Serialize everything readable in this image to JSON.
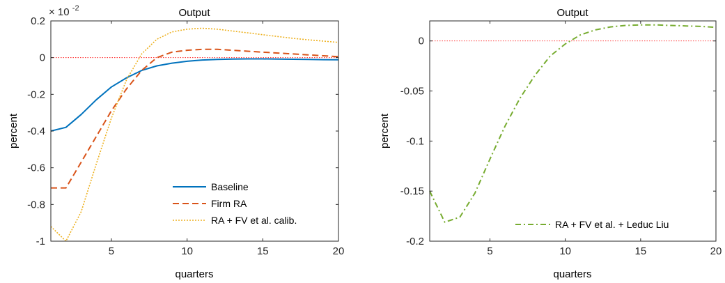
{
  "chart_data": [
    {
      "type": "line",
      "title": "Output",
      "xlabel": "quarters",
      "ylabel": "percent",
      "exponent_base": "× 10",
      "exponent_power": "-2",
      "xlim": [
        1,
        20
      ],
      "ylim": [
        -1,
        0.2
      ],
      "xticks": [
        5,
        10,
        15,
        20
      ],
      "yticks": [
        0.2,
        0,
        -0.2,
        -0.4,
        -0.6,
        -0.8,
        -1
      ],
      "ytick_labels": [
        "0.2",
        "0",
        "-0.2",
        "-0.4",
        "-0.6",
        "-0.8",
        "-1"
      ],
      "xtick_labels": [
        "5",
        "10",
        "15",
        "20"
      ],
      "grid": false,
      "legend_placement": "bottom-right",
      "reference_line": {
        "y": 0,
        "color": "#ff0000",
        "style": "dotted"
      },
      "x": [
        1,
        2,
        3,
        4,
        5,
        6,
        7,
        8,
        9,
        10,
        11,
        12,
        13,
        14,
        15,
        16,
        17,
        18,
        19,
        20
      ],
      "series": [
        {
          "name": "Baseline",
          "color": "#0072bd",
          "style": "solid",
          "values": [
            -0.4,
            -0.38,
            -0.31,
            -0.23,
            -0.16,
            -0.11,
            -0.07,
            -0.045,
            -0.03,
            -0.02,
            -0.013,
            -0.01,
            -0.008,
            -0.007,
            -0.007,
            -0.008,
            -0.009,
            -0.01,
            -0.011,
            -0.012
          ]
        },
        {
          "name": "Firm RA",
          "color": "#d95319",
          "style": "dashed",
          "values": [
            -0.71,
            -0.71,
            -0.57,
            -0.43,
            -0.29,
            -0.17,
            -0.07,
            0.0,
            0.03,
            0.04,
            0.045,
            0.045,
            0.04,
            0.035,
            0.03,
            0.025,
            0.02,
            0.015,
            0.01,
            0.005
          ]
        },
        {
          "name": "RA + FV et al. calib.",
          "color": "#edb120",
          "style": "dotted",
          "values": [
            -0.92,
            -1.0,
            -0.84,
            -0.58,
            -0.33,
            -0.12,
            0.02,
            0.1,
            0.14,
            0.155,
            0.16,
            0.155,
            0.145,
            0.135,
            0.125,
            0.115,
            0.105,
            0.097,
            0.09,
            0.083
          ]
        }
      ]
    },
    {
      "type": "line",
      "title": "Output",
      "xlabel": "quarters",
      "ylabel": "percent",
      "xlim": [
        1,
        20
      ],
      "ylim": [
        -0.2,
        0.02
      ],
      "xticks": [
        5,
        10,
        15,
        20
      ],
      "yticks": [
        0,
        -0.05,
        -0.1,
        -0.15,
        -0.2
      ],
      "ytick_labels": [
        "0",
        "-0.05",
        "-0.1",
        "-0.15",
        "-0.2"
      ],
      "xtick_labels": [
        "5",
        "10",
        "15",
        "20"
      ],
      "grid": false,
      "legend_placement": "bottom-right",
      "reference_line": {
        "y": 0,
        "color": "#ff0000",
        "style": "dotted"
      },
      "x": [
        1,
        2,
        3,
        4,
        5,
        6,
        7,
        8,
        9,
        10,
        11,
        12,
        13,
        14,
        15,
        16,
        17,
        18,
        19,
        20
      ],
      "series": [
        {
          "name": "RA + FV et al. + Leduc Liu",
          "color": "#77ac30",
          "style": "dashdot",
          "values": [
            -0.15,
            -0.181,
            -0.176,
            -0.152,
            -0.118,
            -0.085,
            -0.057,
            -0.034,
            -0.015,
            -0.003,
            0.006,
            0.011,
            0.014,
            0.0155,
            0.016,
            0.016,
            0.0155,
            0.015,
            0.0145,
            0.0135
          ]
        }
      ]
    }
  ]
}
